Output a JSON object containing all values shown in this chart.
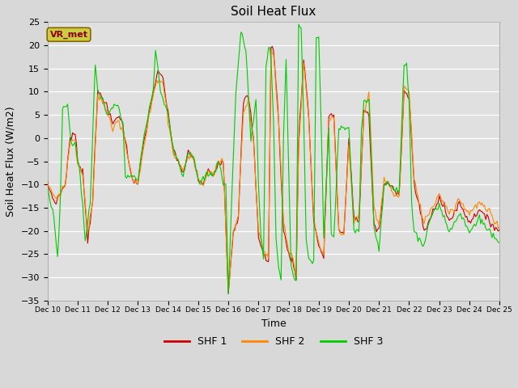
{
  "title": "Soil Heat Flux",
  "xlabel": "Time",
  "ylabel": "Soil Heat Flux (W/m2)",
  "ylim": [
    -35,
    25
  ],
  "xlim": [
    0,
    360
  ],
  "yticks": [
    -35,
    -30,
    -25,
    -20,
    -15,
    -10,
    -5,
    0,
    5,
    10,
    15,
    20,
    25
  ],
  "colors": {
    "SHF 1": "#cc0000",
    "SHF 2": "#ff8800",
    "SHF 3": "#00cc00"
  },
  "background_color": "#d8d8d8",
  "axes_background": "#e0e0e0",
  "grid_color": "#ffffff",
  "legend_label": "VR_met",
  "legend_box_facecolor": "#cccc44",
  "legend_box_edgecolor": "#886600",
  "legend_text_color": "#880000",
  "xtick_labels": [
    "Dec 10",
    "Dec 11",
    "Dec 12",
    "Dec 13",
    "Dec 14",
    "Dec 15",
    "Dec 16",
    "Dec 17",
    "Dec 18",
    "Dec 19",
    "Dec 20",
    "Dec 21",
    "Dec 22",
    "Dec 23",
    "Dec 24",
    "Dec 25"
  ],
  "xtick_positions": [
    0,
    24,
    48,
    72,
    96,
    120,
    144,
    168,
    192,
    216,
    240,
    264,
    288,
    312,
    336,
    360
  ],
  "linewidth": 0.8,
  "figsize": [
    6.4,
    4.8
  ],
  "dpi": 100
}
